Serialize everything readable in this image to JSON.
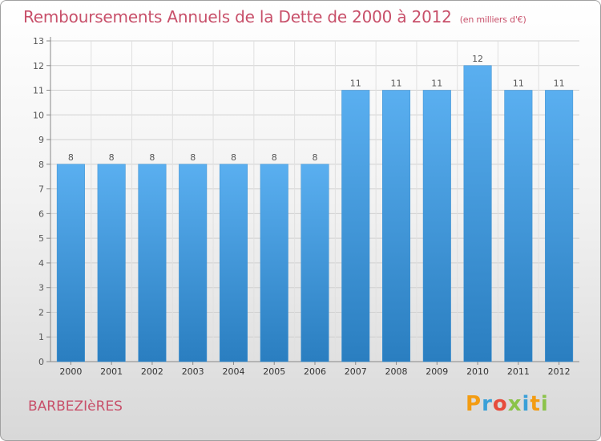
{
  "header": {
    "title": "Remboursements Annuels de la Dette de 2000 à 2012",
    "subtitle": "(en milliers d'€)"
  },
  "footer": {
    "place": "BARBEZIèRES",
    "logo_text": "Proxiti",
    "logo_colors": [
      "#f39c12",
      "#3aa0d8",
      "#e74c3c",
      "#8bc34a",
      "#3aa0d8",
      "#f39c12",
      "#8bc34a"
    ]
  },
  "chart_data": {
    "type": "bar",
    "title": "Remboursements Annuels de la Dette de 2000 à 2012",
    "subtitle": "(en milliers d'€)",
    "xlabel": "",
    "ylabel": "",
    "categories": [
      "2000",
      "2001",
      "2002",
      "2003",
      "2004",
      "2005",
      "2006",
      "2007",
      "2008",
      "2009",
      "2010",
      "2011",
      "2012"
    ],
    "values": [
      8,
      8,
      8,
      8,
      8,
      8,
      8,
      11,
      11,
      11,
      12,
      11,
      11
    ],
    "data_labels": [
      "8",
      "8",
      "8",
      "8",
      "8",
      "8",
      "8",
      "11",
      "11",
      "11",
      "12",
      "11",
      "11"
    ],
    "ylim": [
      0,
      13
    ],
    "yticks": [
      0,
      1,
      2,
      3,
      4,
      5,
      6,
      7,
      8,
      9,
      10,
      11,
      12,
      13
    ],
    "grid": true,
    "bar_color_top": "#5aaff0",
    "bar_color_bottom": "#2a7ec0",
    "label_color": "#555555",
    "title_color": "#c8506a"
  }
}
